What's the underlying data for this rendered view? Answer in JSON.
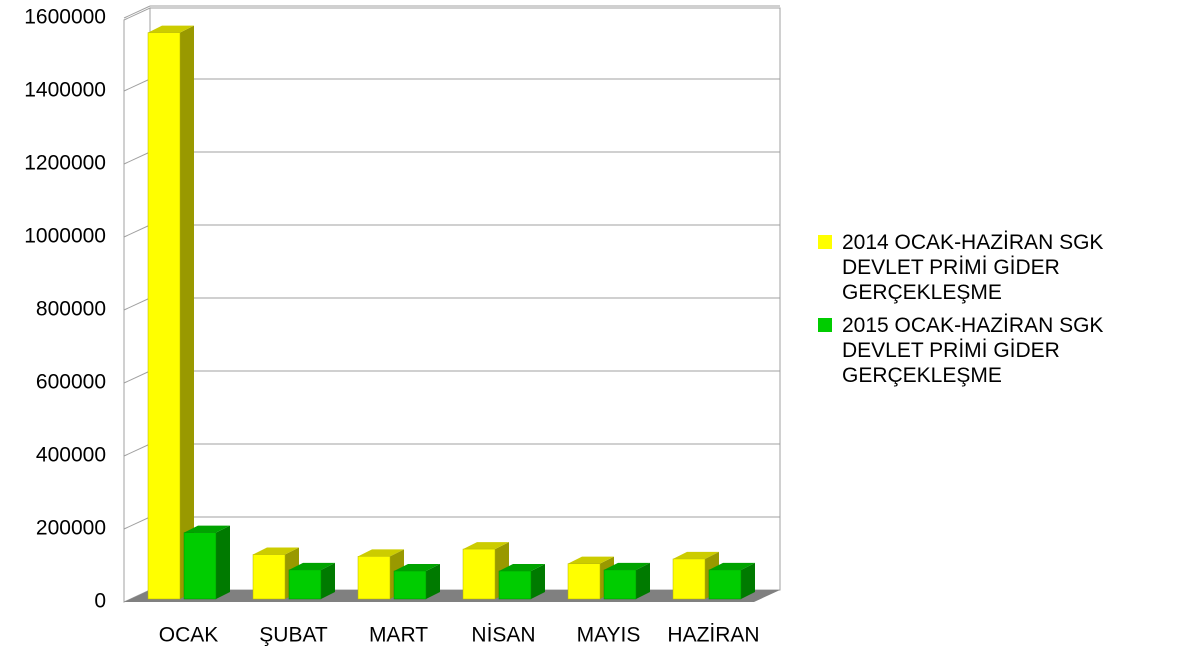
{
  "chart_data": {
    "type": "bar",
    "categories": [
      "OCAK",
      "ŞUBAT",
      "MART",
      "NİSAN",
      "MAYIS",
      "HAZİRAN"
    ],
    "series": [
      {
        "name": "2014 OCAK-HAZİRAN SGK DEVLET PRİMİ GİDER GERÇEKLEŞME",
        "color": "#ffff00",
        "values": [
          1560000,
          130000,
          125000,
          145000,
          105000,
          118000
        ]
      },
      {
        "name": "2015 OCAK-HAZİRAN SGK DEVLET PRİMİ GİDER GERÇEKLEŞME",
        "color": "#00cc00",
        "values": [
          190000,
          88000,
          85000,
          85000,
          88000,
          88000
        ]
      }
    ],
    "ylim": [
      0,
      1600000
    ],
    "yticks": [
      0,
      200000,
      400000,
      600000,
      800000,
      1000000,
      1200000,
      1400000,
      1600000
    ],
    "grid": true,
    "legend": "right"
  }
}
